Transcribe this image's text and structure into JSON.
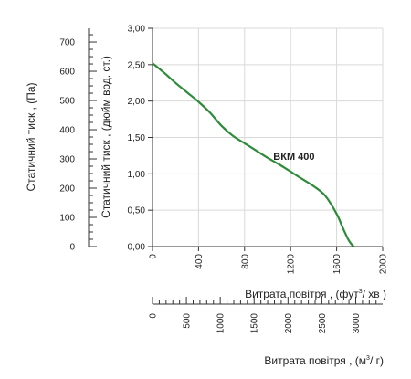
{
  "chart_data": {
    "type": "line",
    "colors": {
      "curve": "#2e8b3a",
      "axis": "#333333",
      "grid": "#d9d9d9"
    },
    "grid": true,
    "series": [
      {
        "name": "ВКМ 400",
        "x": [
          0,
          100,
          200,
          300,
          400,
          500,
          600,
          700,
          800,
          900,
          1000,
          1100,
          1200,
          1300,
          1400,
          1500,
          1600,
          1650,
          1700,
          1730,
          1750
        ],
        "values": [
          2.52,
          2.39,
          2.25,
          2.12,
          1.99,
          1.84,
          1.66,
          1.52,
          1.42,
          1.32,
          1.22,
          1.13,
          1.03,
          0.93,
          0.83,
          0.7,
          0.45,
          0.27,
          0.1,
          0.03,
          0.0
        ]
      }
    ],
    "inch_axis": {
      "title": "Статичний тиск , (дюйм вод. ст.)",
      "range": [
        0,
        3
      ],
      "ticks": [
        "0,00",
        "0,50",
        "1,00",
        "1,50",
        "2,00",
        "2,50",
        "3,00"
      ],
      "tick_values": [
        0,
        0.5,
        1.0,
        1.5,
        2.0,
        2.5,
        3.0
      ]
    },
    "pa_axis": {
      "title": "Статичний тиск , (Па)",
      "range": [
        0,
        747
      ],
      "ticks": [
        "0",
        "100",
        "200",
        "300",
        "400",
        "500",
        "600",
        "700"
      ],
      "tick_values": [
        0,
        100,
        200,
        300,
        400,
        500,
        600,
        700
      ]
    },
    "cfm_axis": {
      "title_main": "Витрата повітря , (фут",
      "title_sup": "3",
      "title_end": "/  хв )",
      "range": [
        0,
        2000
      ],
      "ticks": [
        "0",
        "400",
        "800",
        "1200",
        "1600",
        "2000"
      ],
      "tick_values": [
        0,
        400,
        800,
        1200,
        1600,
        2000
      ]
    },
    "m3h_axis": {
      "title_main": "Витрата повітря , (м",
      "title_sup": "3",
      "title_end": "/ г)",
      "range": [
        0,
        3398
      ],
      "ticks": [
        "0",
        "500",
        "1000",
        "1500",
        "2000",
        "2500",
        "3000"
      ],
      "tick_values": [
        0,
        500,
        1000,
        1500,
        2000,
        2500,
        3000
      ]
    }
  }
}
